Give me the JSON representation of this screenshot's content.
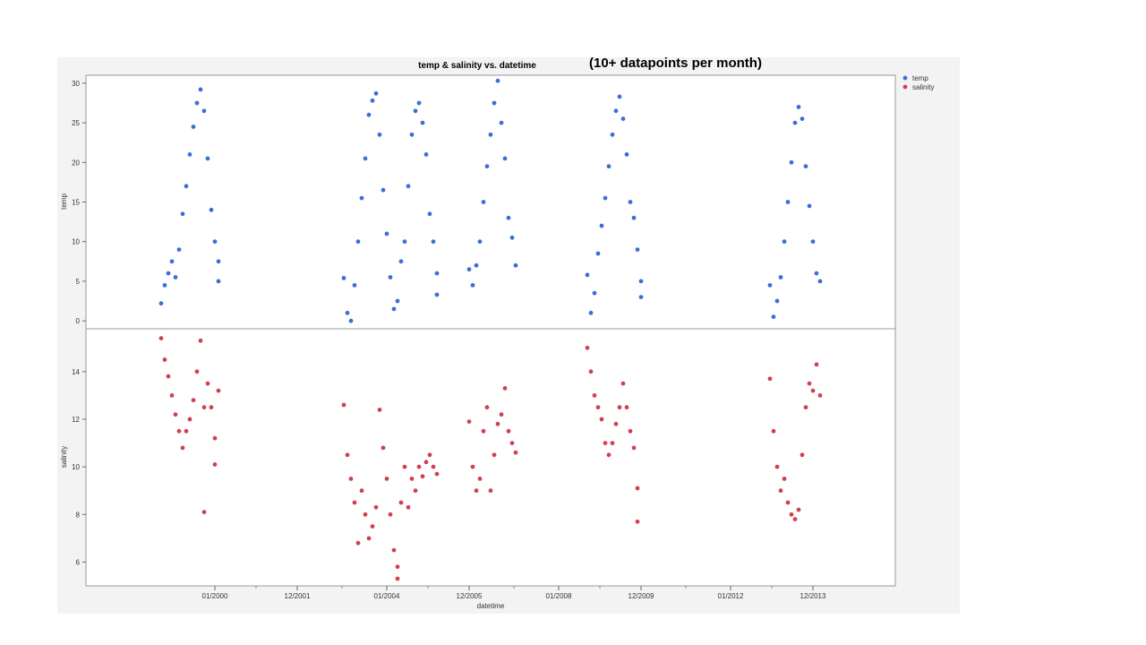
{
  "chart_data": {
    "type": "scatter",
    "title": "temp &  salinity vs.  datetime",
    "annotation": "(10+ datapoints per month)",
    "xlabel": "datetime",
    "x_type": "date",
    "x_ticks": [
      "01/2000",
      "12/2001",
      "01/2004",
      "12/2005",
      "01/2008",
      "12/2009",
      "01/2012",
      "12/2013"
    ],
    "xlim": [
      "1997-01",
      "2015-11"
    ],
    "grid": false,
    "legend_position": "top-right",
    "panels": [
      {
        "ylabel": "temp",
        "series": "temp",
        "ylim": [
          -1,
          31
        ],
        "y_ticks": [
          0,
          5,
          10,
          15,
          20,
          25,
          30
        ]
      },
      {
        "ylabel": "salinity",
        "series": "salinity",
        "ylim": [
          5,
          15.8
        ],
        "y_ticks": [
          6,
          8,
          10,
          12,
          14
        ]
      }
    ],
    "series": [
      {
        "name": "temp",
        "color": "#3b6fd6",
        "points": [
          {
            "x": "1998-10",
            "y": 2.2
          },
          {
            "x": "1998-11",
            "y": 4.5
          },
          {
            "x": "1998-12",
            "y": 6.0
          },
          {
            "x": "1999-01",
            "y": 7.5
          },
          {
            "x": "1999-02",
            "y": 5.5
          },
          {
            "x": "1999-03",
            "y": 9.0
          },
          {
            "x": "1999-04",
            "y": 13.5
          },
          {
            "x": "1999-05",
            "y": 17.0
          },
          {
            "x": "1999-06",
            "y": 21.0
          },
          {
            "x": "1999-07",
            "y": 24.5
          },
          {
            "x": "1999-08",
            "y": 27.5
          },
          {
            "x": "1999-09",
            "y": 29.2
          },
          {
            "x": "1999-10",
            "y": 26.5
          },
          {
            "x": "1999-11",
            "y": 20.5
          },
          {
            "x": "1999-12",
            "y": 14.0
          },
          {
            "x": "2000-01",
            "y": 10.0
          },
          {
            "x": "2000-02",
            "y": 7.5
          },
          {
            "x": "2000-02",
            "y": 5.0
          },
          {
            "x": "2003-01",
            "y": 5.4
          },
          {
            "x": "2003-02",
            "y": 1.0
          },
          {
            "x": "2003-03",
            "y": 0.0
          },
          {
            "x": "2003-04",
            "y": 4.5
          },
          {
            "x": "2003-05",
            "y": 10.0
          },
          {
            "x": "2003-06",
            "y": 15.5
          },
          {
            "x": "2003-07",
            "y": 20.5
          },
          {
            "x": "2003-08",
            "y": 26.0
          },
          {
            "x": "2003-09",
            "y": 27.8
          },
          {
            "x": "2003-10",
            "y": 28.7
          },
          {
            "x": "2003-11",
            "y": 23.5
          },
          {
            "x": "2003-12",
            "y": 16.5
          },
          {
            "x": "2004-01",
            "y": 11.0
          },
          {
            "x": "2004-02",
            "y": 5.5
          },
          {
            "x": "2004-03",
            "y": 1.5
          },
          {
            "x": "2004-04",
            "y": 2.5
          },
          {
            "x": "2004-05",
            "y": 7.5
          },
          {
            "x": "2004-06",
            "y": 10.0
          },
          {
            "x": "2004-07",
            "y": 17.0
          },
          {
            "x": "2004-08",
            "y": 23.5
          },
          {
            "x": "2004-09",
            "y": 26.5
          },
          {
            "x": "2004-10",
            "y": 27.5
          },
          {
            "x": "2004-11",
            "y": 25.0
          },
          {
            "x": "2004-12",
            "y": 21.0
          },
          {
            "x": "2005-01",
            "y": 13.5
          },
          {
            "x": "2005-02",
            "y": 10.0
          },
          {
            "x": "2005-03",
            "y": 6.0
          },
          {
            "x": "2005-03",
            "y": 3.3
          },
          {
            "x": "2005-12",
            "y": 6.5
          },
          {
            "x": "2006-01",
            "y": 4.5
          },
          {
            "x": "2006-02",
            "y": 7.0
          },
          {
            "x": "2006-03",
            "y": 10.0
          },
          {
            "x": "2006-04",
            "y": 15.0
          },
          {
            "x": "2006-05",
            "y": 19.5
          },
          {
            "x": "2006-06",
            "y": 23.5
          },
          {
            "x": "2006-07",
            "y": 27.5
          },
          {
            "x": "2006-08",
            "y": 30.3
          },
          {
            "x": "2006-09",
            "y": 25.0
          },
          {
            "x": "2006-10",
            "y": 20.5
          },
          {
            "x": "2006-11",
            "y": 13.0
          },
          {
            "x": "2006-12",
            "y": 10.5
          },
          {
            "x": "2007-01",
            "y": 7.0
          },
          {
            "x": "2008-09",
            "y": 5.8
          },
          {
            "x": "2008-10",
            "y": 1.0
          },
          {
            "x": "2008-11",
            "y": 3.5
          },
          {
            "x": "2008-12",
            "y": 8.5
          },
          {
            "x": "2009-01",
            "y": 12.0
          },
          {
            "x": "2009-02",
            "y": 15.5
          },
          {
            "x": "2009-03",
            "y": 19.5
          },
          {
            "x": "2009-04",
            "y": 23.5
          },
          {
            "x": "2009-05",
            "y": 26.5
          },
          {
            "x": "2009-06",
            "y": 28.3
          },
          {
            "x": "2009-07",
            "y": 25.5
          },
          {
            "x": "2009-08",
            "y": 21.0
          },
          {
            "x": "2009-09",
            "y": 15.0
          },
          {
            "x": "2009-10",
            "y": 13.0
          },
          {
            "x": "2009-11",
            "y": 9.0
          },
          {
            "x": "2009-12",
            "y": 5.0
          },
          {
            "x": "2009-12",
            "y": 3.0
          },
          {
            "x": "2012-12",
            "y": 4.5
          },
          {
            "x": "2013-01",
            "y": 0.5
          },
          {
            "x": "2013-02",
            "y": 2.5
          },
          {
            "x": "2013-03",
            "y": 5.5
          },
          {
            "x": "2013-04",
            "y": 10.0
          },
          {
            "x": "2013-05",
            "y": 15.0
          },
          {
            "x": "2013-06",
            "y": 20.0
          },
          {
            "x": "2013-07",
            "y": 25.0
          },
          {
            "x": "2013-08",
            "y": 27.0
          },
          {
            "x": "2013-09",
            "y": 25.5
          },
          {
            "x": "2013-10",
            "y": 19.5
          },
          {
            "x": "2013-11",
            "y": 14.5
          },
          {
            "x": "2013-12",
            "y": 10.0
          },
          {
            "x": "2014-01",
            "y": 6.0
          },
          {
            "x": "2014-02",
            "y": 5.0
          }
        ]
      },
      {
        "name": "salinity",
        "color": "#d1404f",
        "points": [
          {
            "x": "1998-10",
            "y": 15.4
          },
          {
            "x": "1998-11",
            "y": 14.5
          },
          {
            "x": "1998-12",
            "y": 13.8
          },
          {
            "x": "1999-01",
            "y": 13.0
          },
          {
            "x": "1999-02",
            "y": 12.2
          },
          {
            "x": "1999-03",
            "y": 11.5
          },
          {
            "x": "1999-04",
            "y": 10.8
          },
          {
            "x": "1999-05",
            "y": 11.5
          },
          {
            "x": "1999-06",
            "y": 12.0
          },
          {
            "x": "1999-07",
            "y": 12.8
          },
          {
            "x": "1999-08",
            "y": 14.0
          },
          {
            "x": "1999-09",
            "y": 15.3
          },
          {
            "x": "1999-10",
            "y": 12.5
          },
          {
            "x": "1999-10",
            "y": 8.1
          },
          {
            "x": "1999-11",
            "y": 13.5
          },
          {
            "x": "1999-12",
            "y": 12.5
          },
          {
            "x": "2000-01",
            "y": 11.2
          },
          {
            "x": "2000-01",
            "y": 10.1
          },
          {
            "x": "2000-02",
            "y": 13.2
          },
          {
            "x": "2003-01",
            "y": 12.6
          },
          {
            "x": "2003-02",
            "y": 10.5
          },
          {
            "x": "2003-03",
            "y": 9.5
          },
          {
            "x": "2003-04",
            "y": 8.5
          },
          {
            "x": "2003-05",
            "y": 6.8
          },
          {
            "x": "2003-06",
            "y": 9.0
          },
          {
            "x": "2003-07",
            "y": 8.0
          },
          {
            "x": "2003-08",
            "y": 7.0
          },
          {
            "x": "2003-09",
            "y": 7.5
          },
          {
            "x": "2003-10",
            "y": 8.3
          },
          {
            "x": "2003-11",
            "y": 12.4
          },
          {
            "x": "2003-12",
            "y": 10.8
          },
          {
            "x": "2004-01",
            "y": 9.5
          },
          {
            "x": "2004-02",
            "y": 8.0
          },
          {
            "x": "2004-03",
            "y": 6.5
          },
          {
            "x": "2004-04",
            "y": 5.8
          },
          {
            "x": "2004-04",
            "y": 5.3
          },
          {
            "x": "2004-05",
            "y": 8.5
          },
          {
            "x": "2004-06",
            "y": 10.0
          },
          {
            "x": "2004-07",
            "y": 8.3
          },
          {
            "x": "2004-08",
            "y": 9.5
          },
          {
            "x": "2004-09",
            "y": 9.0
          },
          {
            "x": "2004-10",
            "y": 10.0
          },
          {
            "x": "2004-11",
            "y": 9.6
          },
          {
            "x": "2004-12",
            "y": 10.2
          },
          {
            "x": "2005-01",
            "y": 10.5
          },
          {
            "x": "2005-02",
            "y": 10.0
          },
          {
            "x": "2005-03",
            "y": 9.7
          },
          {
            "x": "2005-12",
            "y": 11.9
          },
          {
            "x": "2006-01",
            "y": 10.0
          },
          {
            "x": "2006-02",
            "y": 9.0
          },
          {
            "x": "2006-03",
            "y": 9.5
          },
          {
            "x": "2006-04",
            "y": 11.5
          },
          {
            "x": "2006-05",
            "y": 12.5
          },
          {
            "x": "2006-06",
            "y": 9.0
          },
          {
            "x": "2006-07",
            "y": 10.5
          },
          {
            "x": "2006-08",
            "y": 11.8
          },
          {
            "x": "2006-09",
            "y": 12.2
          },
          {
            "x": "2006-10",
            "y": 13.3
          },
          {
            "x": "2006-11",
            "y": 11.5
          },
          {
            "x": "2006-12",
            "y": 11.0
          },
          {
            "x": "2007-01",
            "y": 10.6
          },
          {
            "x": "2008-09",
            "y": 15.0
          },
          {
            "x": "2008-10",
            "y": 14.0
          },
          {
            "x": "2008-11",
            "y": 13.0
          },
          {
            "x": "2008-12",
            "y": 12.5
          },
          {
            "x": "2009-01",
            "y": 12.0
          },
          {
            "x": "2009-02",
            "y": 11.0
          },
          {
            "x": "2009-03",
            "y": 10.5
          },
          {
            "x": "2009-04",
            "y": 11.0
          },
          {
            "x": "2009-05",
            "y": 11.8
          },
          {
            "x": "2009-06",
            "y": 12.5
          },
          {
            "x": "2009-07",
            "y": 13.5
          },
          {
            "x": "2009-08",
            "y": 12.5
          },
          {
            "x": "2009-09",
            "y": 11.5
          },
          {
            "x": "2009-10",
            "y": 10.8
          },
          {
            "x": "2009-11",
            "y": 9.1
          },
          {
            "x": "2009-11",
            "y": 7.7
          },
          {
            "x": "2012-12",
            "y": 13.7
          },
          {
            "x": "2013-01",
            "y": 11.5
          },
          {
            "x": "2013-02",
            "y": 10.0
          },
          {
            "x": "2013-03",
            "y": 9.0
          },
          {
            "x": "2013-04",
            "y": 9.5
          },
          {
            "x": "2013-05",
            "y": 8.5
          },
          {
            "x": "2013-06",
            "y": 8.0
          },
          {
            "x": "2013-07",
            "y": 7.8
          },
          {
            "x": "2013-08",
            "y": 8.2
          },
          {
            "x": "2013-09",
            "y": 10.5
          },
          {
            "x": "2013-10",
            "y": 12.5
          },
          {
            "x": "2013-11",
            "y": 13.5
          },
          {
            "x": "2013-12",
            "y": 13.2
          },
          {
            "x": "2014-01",
            "y": 14.3
          },
          {
            "x": "2014-02",
            "y": 13.0
          }
        ]
      }
    ]
  }
}
